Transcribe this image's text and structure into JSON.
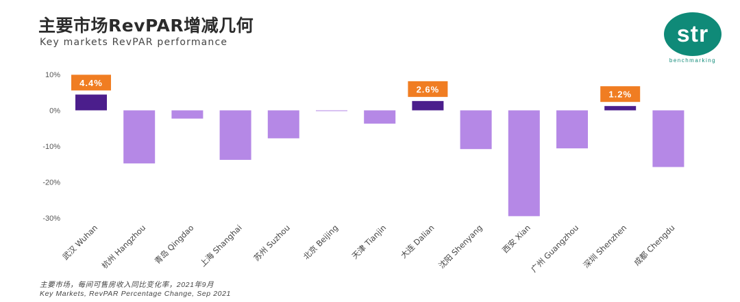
{
  "header": {
    "title": "主要市场RevPAR增减几何",
    "subtitle": "Key markets RevPAR performance"
  },
  "logo": {
    "mark": "str",
    "tagline": "benchmarking",
    "color": "#0f8a78"
  },
  "chart_data": {
    "type": "bar",
    "categories": [
      "武汉 Wuhan",
      "杭州 Hangzhou",
      "青岛 Qingdao",
      "上海 Shanghai",
      "苏州 Suzhou",
      "北京 Beijing",
      "天津 Tianjin",
      "大连 Dalian",
      "沈阳 Shenyang",
      "西安 Xian",
      "广州 Guangzhou",
      "深圳 Shenzhen",
      "成都 Chengdu"
    ],
    "values": [
      4.4,
      -14.8,
      -2.3,
      -13.8,
      -7.8,
      -0.2,
      -3.7,
      2.6,
      -10.8,
      -29.5,
      -10.6,
      1.2,
      -15.8
    ],
    "data_labels": [
      "4.4%",
      "",
      "",
      "",
      "",
      "",
      "",
      "2.6%",
      "",
      "",
      "",
      "1.2%",
      ""
    ],
    "ylim": [
      -30,
      10
    ],
    "yticks": [
      10,
      0,
      -10,
      -20,
      -30
    ],
    "ytick_labels": [
      "10%",
      "0%",
      "-10%",
      "-20%",
      "-30%"
    ],
    "grid": false,
    "legend": "none",
    "colors": {
      "positive": "#4b1e8c",
      "negative": "#b588e6",
      "label_bg": "#f07d22",
      "label_text": "#ffffff"
    }
  },
  "footnote": {
    "cn": "主要市场，每间可售房收入同比变化率，2021年9月",
    "en": "Key Markets, RevPAR Percentage Change, Sep 2021"
  }
}
